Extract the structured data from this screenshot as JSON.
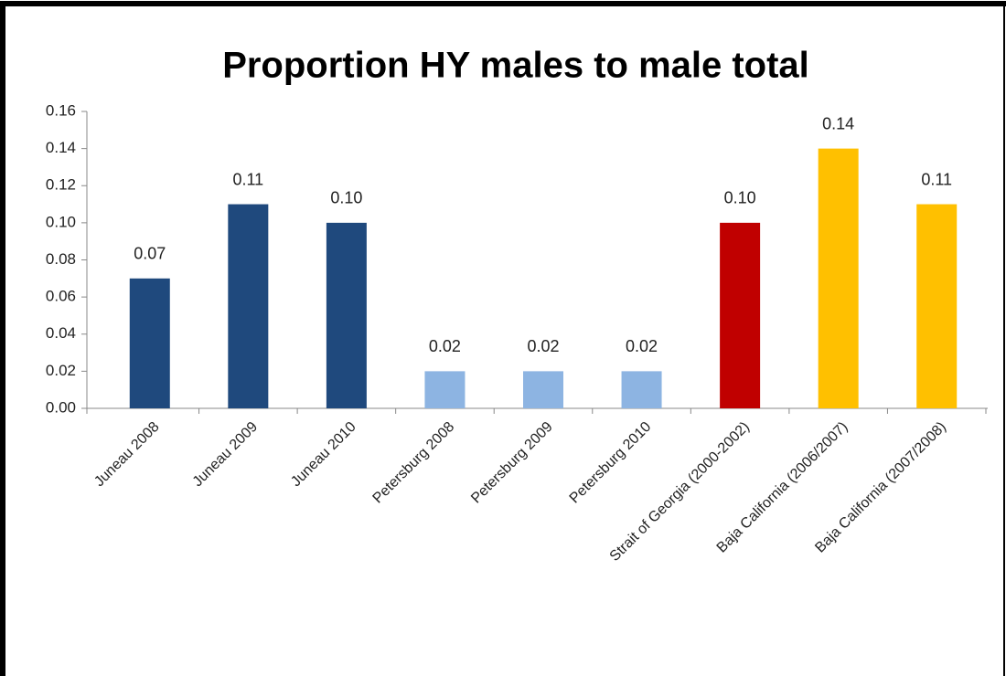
{
  "chart_data": {
    "type": "bar",
    "title": "Proportion HY males to male total",
    "categories": [
      "Juneau 2008",
      "Juneau 2009",
      "Juneau 2010",
      "Petersburg 2008",
      "Petersburg 2009",
      "Petersburg 2010",
      "Strait of Georgia (2000-2002)",
      "Baja California (2006/2007)",
      "Baja California (2007/2008)"
    ],
    "values": [
      0.07,
      0.11,
      0.1,
      0.02,
      0.02,
      0.02,
      0.1,
      0.14,
      0.11
    ],
    "value_labels": [
      "0.07",
      "0.11",
      "0.10",
      "0.02",
      "0.02",
      "0.02",
      "0.10",
      "0.14",
      "0.11"
    ],
    "colors": [
      "#1f497d",
      "#1f497d",
      "#1f497d",
      "#8db4e2",
      "#8db4e2",
      "#8db4e2",
      "#c00000",
      "#ffc000",
      "#ffc000"
    ],
    "ylim": [
      0,
      0.16
    ],
    "yticks": [
      {
        "value": 0,
        "label": "0.00"
      },
      {
        "value": 0.02,
        "label": "0.02"
      },
      {
        "value": 0.04,
        "label": "0.04"
      },
      {
        "value": 0.06,
        "label": "0.06"
      },
      {
        "value": 0.08,
        "label": "0.08"
      },
      {
        "value": 0.1,
        "label": "0.10"
      },
      {
        "value": 0.12,
        "label": "0.12"
      },
      {
        "value": 0.14,
        "label": "0.14"
      },
      {
        "value": 0.16,
        "label": "0.16"
      }
    ],
    "grid": false
  }
}
